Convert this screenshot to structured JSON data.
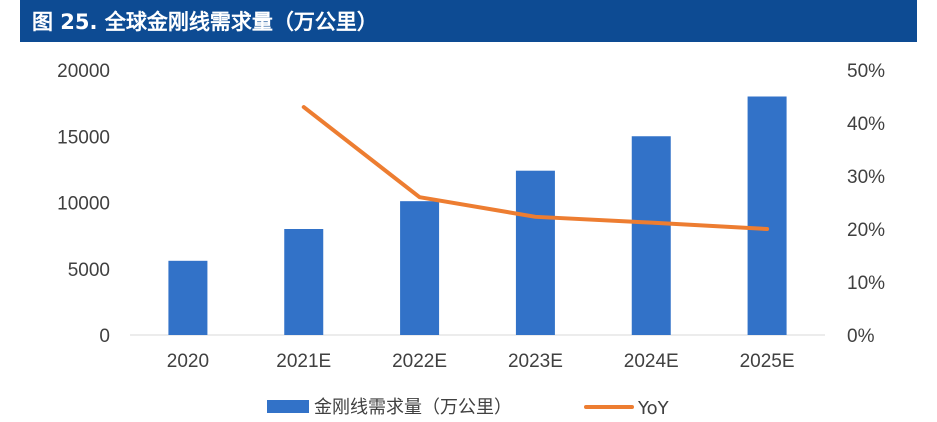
{
  "header": {
    "title": "图 25. 全球金刚线需求量（万公里）"
  },
  "chart_data": {
    "type": "bar",
    "title": "图 25. 全球金刚线需求量（万公里）",
    "categories": [
      "2020",
      "2021E",
      "2022E",
      "2023E",
      "2024E",
      "2025E"
    ],
    "series": [
      {
        "name": "金刚线需求量（万公里）",
        "type": "bar",
        "axis": "left",
        "color": "#3272c8",
        "values": [
          5600,
          8000,
          10100,
          12400,
          15000,
          18000
        ]
      },
      {
        "name": "YoY",
        "type": "line",
        "axis": "right",
        "color": "#ed7d31",
        "values": [
          null,
          43.0,
          26.0,
          22.3,
          21.2,
          20.0
        ]
      }
    ],
    "y_left": {
      "min": 0,
      "max": 20000,
      "ticks": [
        "0",
        "5000",
        "10000",
        "15000",
        "20000"
      ]
    },
    "y_right": {
      "min": 0,
      "max": 50,
      "ticks": [
        "0%",
        "10%",
        "20%",
        "30%",
        "40%",
        "50%"
      ]
    },
    "legend": {
      "position": "bottom",
      "items": [
        "金刚线需求量（万公里）",
        "YoY"
      ]
    },
    "grid": false
  }
}
